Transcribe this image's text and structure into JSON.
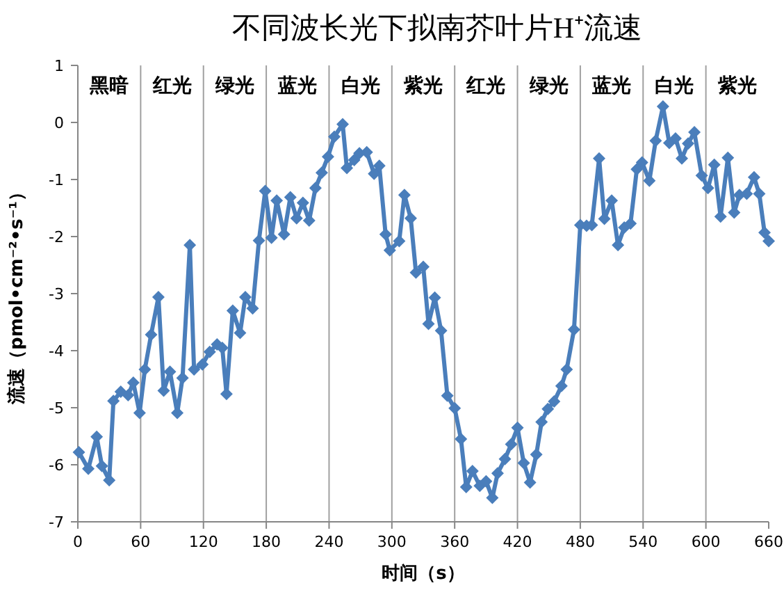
{
  "chart_data": {
    "type": "line",
    "title": "不同波长光下拟南芥叶片H⁺流速",
    "xlabel": "时间（s）",
    "ylabel": "流速（pmol•cm⁻²•s⁻¹）",
    "xlim": [
      0,
      660
    ],
    "xticks": [
      0,
      60,
      120,
      180,
      240,
      300,
      360,
      420,
      480,
      540,
      600,
      660
    ],
    "ylim": [
      -7,
      1
    ],
    "yticks": [
      -7,
      -6,
      -5,
      -4,
      -3,
      -2,
      -1,
      0,
      1
    ],
    "grid": false,
    "marker": "diamond",
    "line_style": "solid",
    "series": [
      {
        "color": "#4a7ebb",
        "x": [
          1,
          10,
          18,
          23,
          30,
          34,
          41,
          48,
          53,
          59,
          64,
          70,
          77,
          82,
          88,
          95,
          100,
          107,
          111,
          119,
          126,
          133,
          138,
          142,
          148,
          155,
          160,
          167,
          173,
          179,
          185,
          190,
          197,
          203,
          209,
          215,
          221,
          227,
          233,
          239,
          245,
          253,
          257,
          264,
          269,
          276,
          283,
          288,
          294,
          298,
          307,
          312,
          318,
          323,
          330,
          335,
          341,
          347,
          353,
          360,
          366,
          371,
          377,
          384,
          390,
          396,
          401,
          408,
          414,
          420,
          426,
          432,
          438,
          443,
          449,
          455,
          462,
          467,
          474,
          480,
          486,
          491,
          498,
          503,
          510,
          516,
          522,
          528,
          534,
          539,
          546,
          552,
          559,
          565,
          571,
          577,
          583,
          589,
          596,
          602,
          608,
          614,
          621,
          627,
          632,
          639,
          646,
          651,
          656,
          660
        ],
        "values": [
          -5.78,
          -6.07,
          -5.51,
          -6.02,
          -6.27,
          -4.88,
          -4.72,
          -4.78,
          -4.56,
          -5.09,
          -4.33,
          -3.72,
          -3.06,
          -4.7,
          -4.37,
          -5.09,
          -4.48,
          -2.15,
          -4.33,
          -4.24,
          -4.02,
          -3.89,
          -3.95,
          -4.76,
          -3.3,
          -3.69,
          -3.06,
          -3.26,
          -2.07,
          -1.2,
          -2.02,
          -1.37,
          -1.96,
          -1.31,
          -1.68,
          -1.41,
          -1.72,
          -1.15,
          -0.88,
          -0.6,
          -0.25,
          -0.03,
          -0.8,
          -0.66,
          -0.54,
          -0.52,
          -0.9,
          -0.76,
          -1.96,
          -2.24,
          -2.08,
          -1.27,
          -1.68,
          -2.63,
          -2.53,
          -3.53,
          -3.07,
          -3.65,
          -4.79,
          -5.01,
          -5.55,
          -6.39,
          -6.11,
          -6.37,
          -6.29,
          -6.58,
          -6.15,
          -5.9,
          -5.64,
          -5.35,
          -5.97,
          -6.31,
          -5.82,
          -5.25,
          -5.02,
          -4.89,
          -4.62,
          -4.33,
          -3.63,
          -1.8,
          -1.81,
          -1.8,
          -0.63,
          -1.69,
          -1.37,
          -2.15,
          -1.84,
          -1.77,
          -0.82,
          -0.7,
          -1.02,
          -0.32,
          0.28,
          -0.36,
          -0.28,
          -0.63,
          -0.37,
          -0.17,
          -0.93,
          -1.15,
          -0.74,
          -1.65,
          -0.62,
          -1.58,
          -1.27,
          -1.25,
          -0.96,
          -1.25,
          -1.93,
          -2.08
        ]
      }
    ],
    "ref_lines": [
      {
        "axis": "x",
        "value": 60,
        "color": "#a0a0a0"
      },
      {
        "axis": "x",
        "value": 120,
        "color": "#a0a0a0"
      },
      {
        "axis": "x",
        "value": 180,
        "color": "#a0a0a0"
      },
      {
        "axis": "x",
        "value": 240,
        "color": "#a0a0a0"
      },
      {
        "axis": "x",
        "value": 300,
        "color": "#a0a0a0"
      },
      {
        "axis": "x",
        "value": 360,
        "color": "#a0a0a0"
      },
      {
        "axis": "x",
        "value": 420,
        "color": "#a0a0a0"
      },
      {
        "axis": "x",
        "value": 480,
        "color": "#a0a0a0"
      },
      {
        "axis": "x",
        "value": 540,
        "color": "#a0a0a0"
      },
      {
        "axis": "x",
        "value": 600,
        "color": "#a0a0a0"
      }
    ],
    "annotations": [
      "黑暗",
      "红光",
      "绿光",
      "蓝光",
      "白光",
      "紫光",
      "红光",
      "绿光",
      "蓝光",
      "白光",
      "紫光"
    ]
  }
}
